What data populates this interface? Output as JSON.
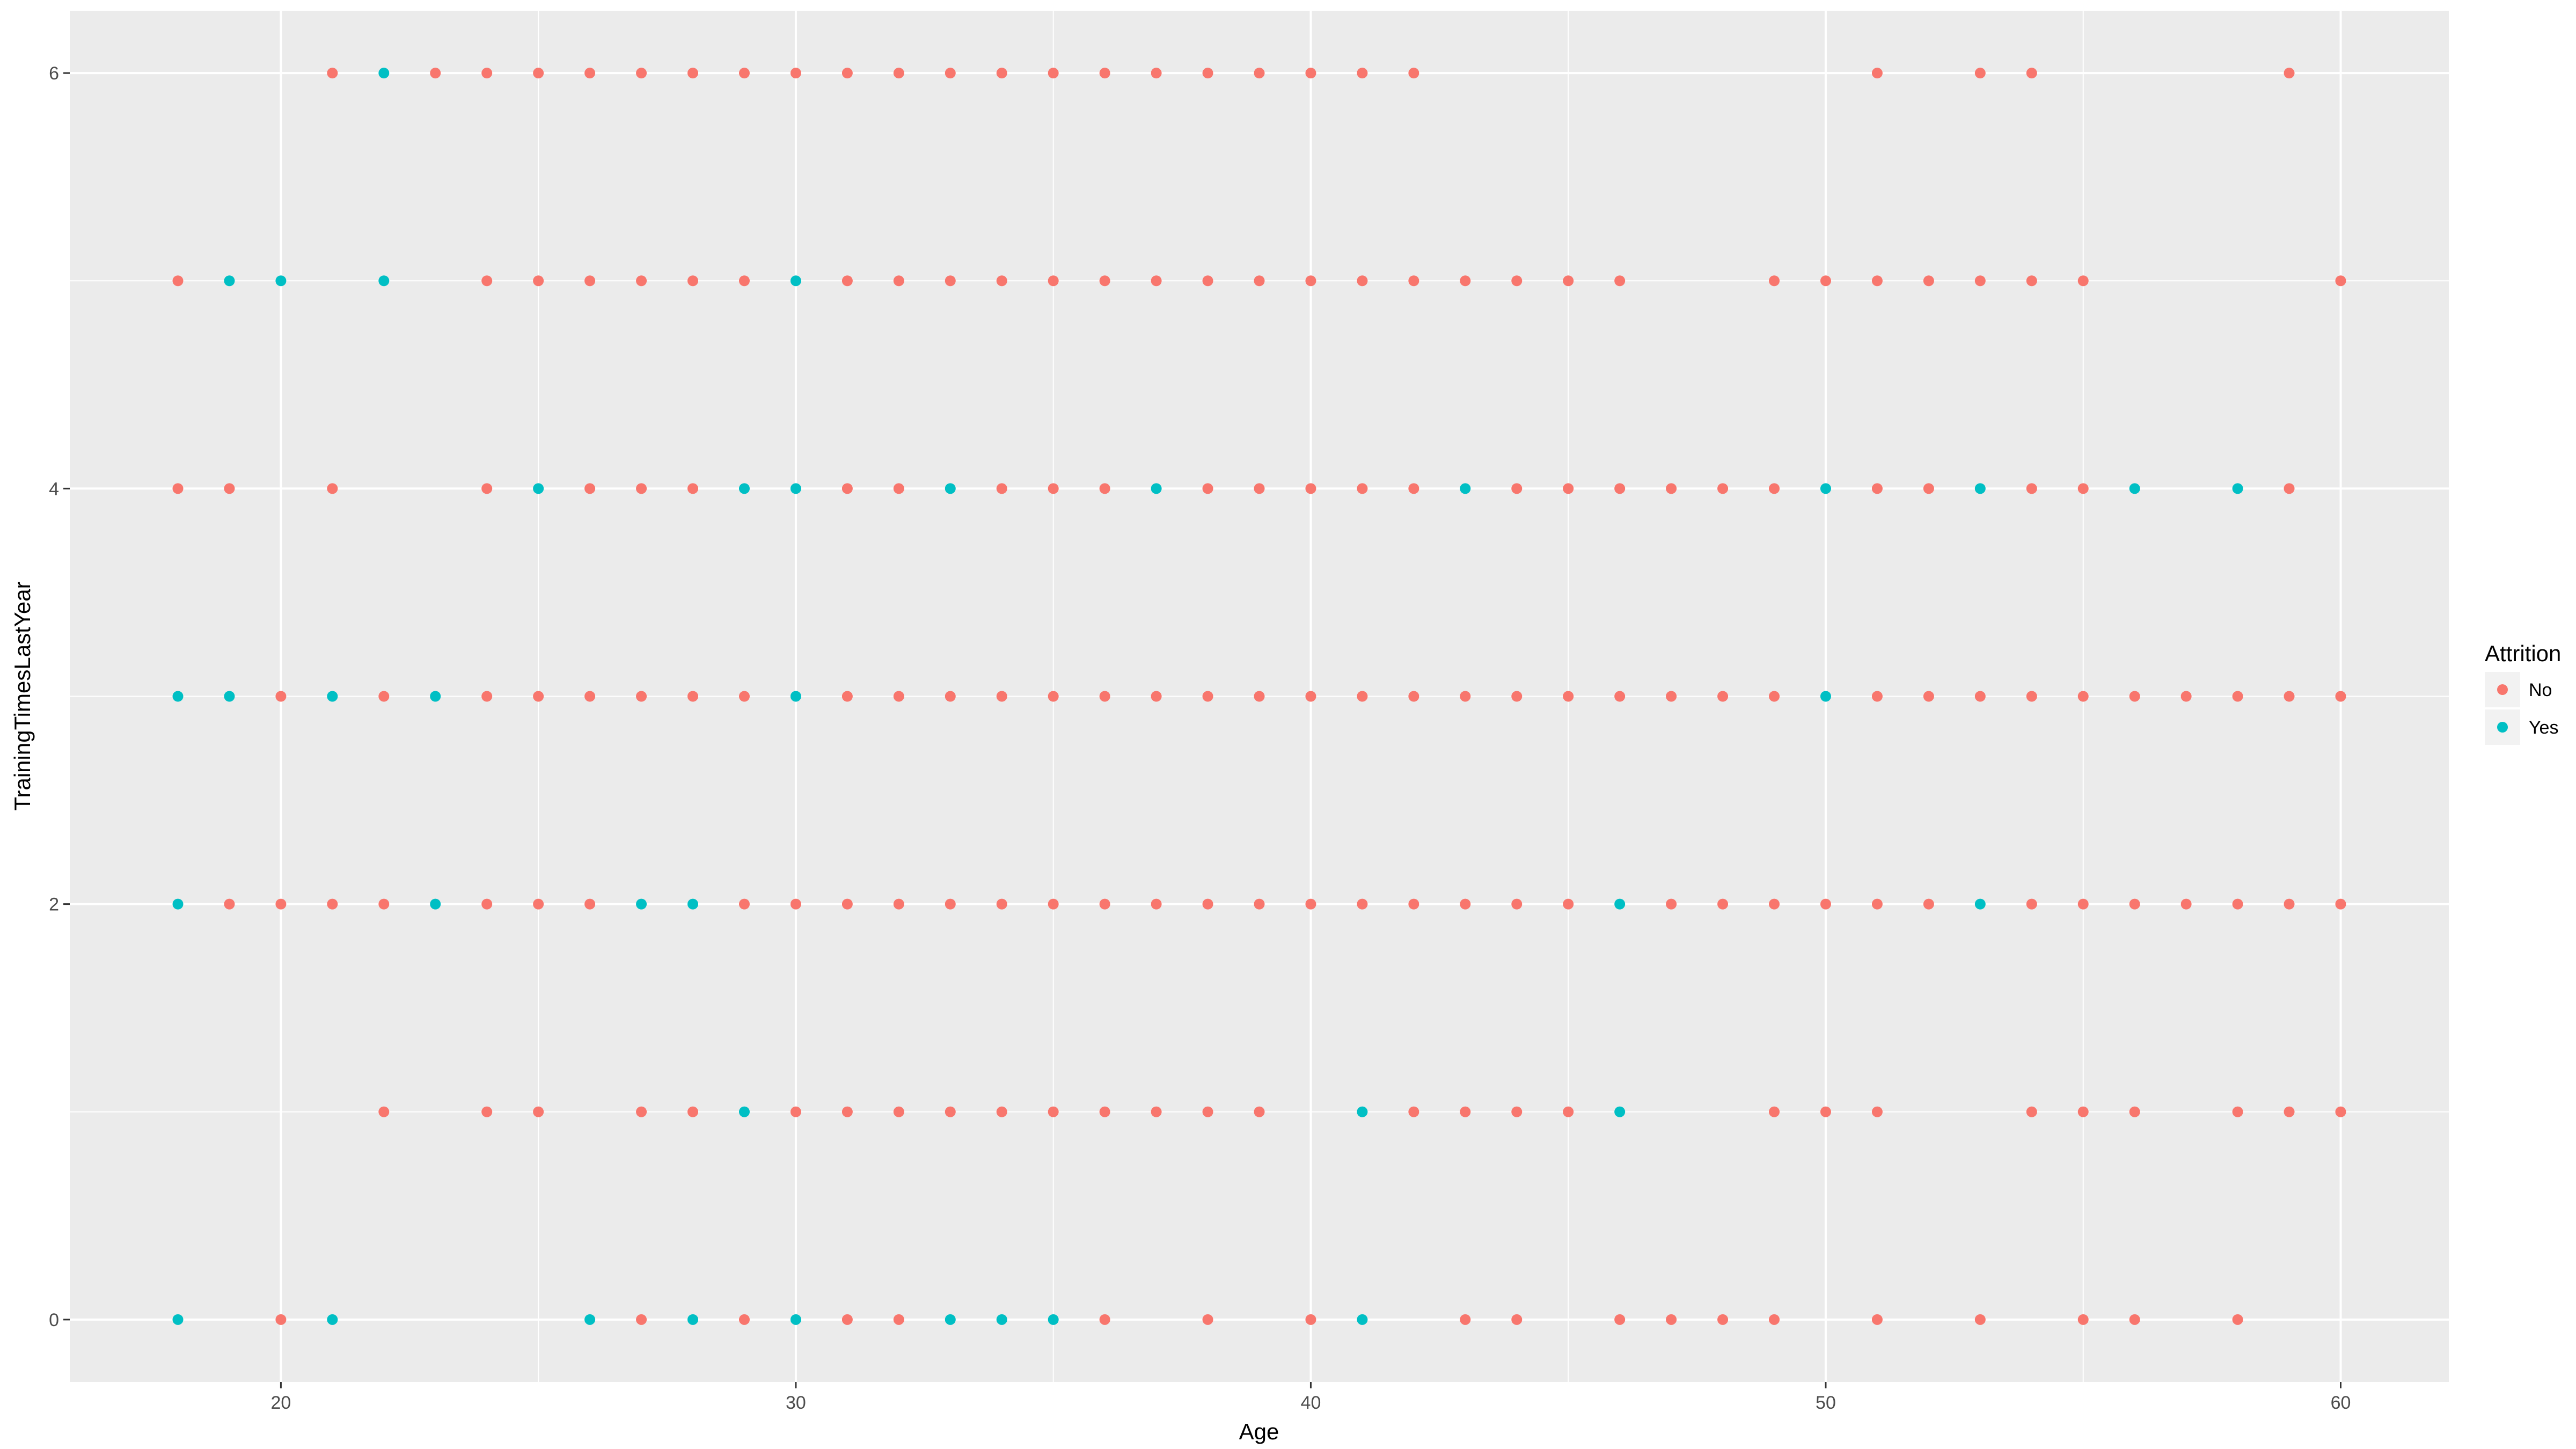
{
  "chart_data": {
    "type": "scatter",
    "title": "",
    "xlabel": "Age",
    "ylabel": "TrainingTimesLastYear",
    "xlim": [
      15.9,
      62.1
    ],
    "ylim": [
      -0.3,
      6.3
    ],
    "x_ticks": [
      20,
      30,
      40,
      50,
      60
    ],
    "y_ticks": [
      0,
      2,
      4,
      6
    ],
    "grid": true,
    "background": "#EBEBEB",
    "grid_color": "#FFFFFF",
    "legend": {
      "title": "Attrition",
      "placement": "right",
      "entries": [
        {
          "label": "No",
          "color": "#F8766D"
        },
        {
          "label": "Yes",
          "color": "#00BFC4"
        }
      ]
    },
    "series": [
      {
        "name": "No",
        "color": "#F8766D",
        "points": [
          [
            21,
            6
          ],
          [
            23,
            6
          ],
          [
            24,
            6
          ],
          [
            25,
            6
          ],
          [
            26,
            6
          ],
          [
            27,
            6
          ],
          [
            28,
            6
          ],
          [
            29,
            6
          ],
          [
            30,
            6
          ],
          [
            31,
            6
          ],
          [
            32,
            6
          ],
          [
            33,
            6
          ],
          [
            34,
            6
          ],
          [
            35,
            6
          ],
          [
            36,
            6
          ],
          [
            37,
            6
          ],
          [
            38,
            6
          ],
          [
            39,
            6
          ],
          [
            40,
            6
          ],
          [
            41,
            6
          ],
          [
            42,
            6
          ],
          [
            51,
            6
          ],
          [
            53,
            6
          ],
          [
            54,
            6
          ],
          [
            59,
            6
          ],
          [
            18,
            5
          ],
          [
            24,
            5
          ],
          [
            25,
            5
          ],
          [
            26,
            5
          ],
          [
            27,
            5
          ],
          [
            28,
            5
          ],
          [
            29,
            5
          ],
          [
            31,
            5
          ],
          [
            32,
            5
          ],
          [
            33,
            5
          ],
          [
            34,
            5
          ],
          [
            35,
            5
          ],
          [
            36,
            5
          ],
          [
            37,
            5
          ],
          [
            38,
            5
          ],
          [
            39,
            5
          ],
          [
            40,
            5
          ],
          [
            41,
            5
          ],
          [
            42,
            5
          ],
          [
            43,
            5
          ],
          [
            44,
            5
          ],
          [
            45,
            5
          ],
          [
            46,
            5
          ],
          [
            49,
            5
          ],
          [
            50,
            5
          ],
          [
            51,
            5
          ],
          [
            52,
            5
          ],
          [
            53,
            5
          ],
          [
            54,
            5
          ],
          [
            55,
            5
          ],
          [
            60,
            5
          ],
          [
            18,
            4
          ],
          [
            19,
            4
          ],
          [
            21,
            4
          ],
          [
            24,
            4
          ],
          [
            26,
            4
          ],
          [
            27,
            4
          ],
          [
            28,
            4
          ],
          [
            31,
            4
          ],
          [
            32,
            4
          ],
          [
            34,
            4
          ],
          [
            35,
            4
          ],
          [
            36,
            4
          ],
          [
            38,
            4
          ],
          [
            39,
            4
          ],
          [
            40,
            4
          ],
          [
            41,
            4
          ],
          [
            42,
            4
          ],
          [
            44,
            4
          ],
          [
            45,
            4
          ],
          [
            46,
            4
          ],
          [
            47,
            4
          ],
          [
            48,
            4
          ],
          [
            49,
            4
          ],
          [
            51,
            4
          ],
          [
            52,
            4
          ],
          [
            54,
            4
          ],
          [
            55,
            4
          ],
          [
            59,
            4
          ],
          [
            20,
            3
          ],
          [
            22,
            3
          ],
          [
            24,
            3
          ],
          [
            25,
            3
          ],
          [
            26,
            3
          ],
          [
            27,
            3
          ],
          [
            28,
            3
          ],
          [
            29,
            3
          ],
          [
            31,
            3
          ],
          [
            32,
            3
          ],
          [
            33,
            3
          ],
          [
            34,
            3
          ],
          [
            35,
            3
          ],
          [
            36,
            3
          ],
          [
            37,
            3
          ],
          [
            38,
            3
          ],
          [
            39,
            3
          ],
          [
            40,
            3
          ],
          [
            41,
            3
          ],
          [
            42,
            3
          ],
          [
            43,
            3
          ],
          [
            44,
            3
          ],
          [
            45,
            3
          ],
          [
            46,
            3
          ],
          [
            47,
            3
          ],
          [
            48,
            3
          ],
          [
            49,
            3
          ],
          [
            51,
            3
          ],
          [
            52,
            3
          ],
          [
            53,
            3
          ],
          [
            54,
            3
          ],
          [
            55,
            3
          ],
          [
            56,
            3
          ],
          [
            57,
            3
          ],
          [
            58,
            3
          ],
          [
            59,
            3
          ],
          [
            60,
            3
          ],
          [
            19,
            2
          ],
          [
            20,
            2
          ],
          [
            21,
            2
          ],
          [
            22,
            2
          ],
          [
            24,
            2
          ],
          [
            25,
            2
          ],
          [
            26,
            2
          ],
          [
            29,
            2
          ],
          [
            30,
            2
          ],
          [
            31,
            2
          ],
          [
            32,
            2
          ],
          [
            33,
            2
          ],
          [
            34,
            2
          ],
          [
            35,
            2
          ],
          [
            36,
            2
          ],
          [
            37,
            2
          ],
          [
            38,
            2
          ],
          [
            39,
            2
          ],
          [
            40,
            2
          ],
          [
            41,
            2
          ],
          [
            42,
            2
          ],
          [
            43,
            2
          ],
          [
            44,
            2
          ],
          [
            45,
            2
          ],
          [
            47,
            2
          ],
          [
            48,
            2
          ],
          [
            49,
            2
          ],
          [
            50,
            2
          ],
          [
            51,
            2
          ],
          [
            52,
            2
          ],
          [
            54,
            2
          ],
          [
            55,
            2
          ],
          [
            56,
            2
          ],
          [
            57,
            2
          ],
          [
            58,
            2
          ],
          [
            59,
            2
          ],
          [
            60,
            2
          ],
          [
            22,
            1
          ],
          [
            24,
            1
          ],
          [
            25,
            1
          ],
          [
            27,
            1
          ],
          [
            28,
            1
          ],
          [
            30,
            1
          ],
          [
            31,
            1
          ],
          [
            32,
            1
          ],
          [
            33,
            1
          ],
          [
            34,
            1
          ],
          [
            35,
            1
          ],
          [
            36,
            1
          ],
          [
            37,
            1
          ],
          [
            38,
            1
          ],
          [
            39,
            1
          ],
          [
            42,
            1
          ],
          [
            43,
            1
          ],
          [
            44,
            1
          ],
          [
            45,
            1
          ],
          [
            49,
            1
          ],
          [
            50,
            1
          ],
          [
            51,
            1
          ],
          [
            54,
            1
          ],
          [
            55,
            1
          ],
          [
            56,
            1
          ],
          [
            58,
            1
          ],
          [
            59,
            1
          ],
          [
            60,
            1
          ],
          [
            20,
            0
          ],
          [
            27,
            0
          ],
          [
            29,
            0
          ],
          [
            31,
            0
          ],
          [
            32,
            0
          ],
          [
            36,
            0
          ],
          [
            38,
            0
          ],
          [
            40,
            0
          ],
          [
            43,
            0
          ],
          [
            44,
            0
          ],
          [
            46,
            0
          ],
          [
            47,
            0
          ],
          [
            48,
            0
          ],
          [
            49,
            0
          ],
          [
            51,
            0
          ],
          [
            53,
            0
          ],
          [
            55,
            0
          ],
          [
            56,
            0
          ],
          [
            58,
            0
          ]
        ]
      },
      {
        "name": "Yes",
        "color": "#00BFC4",
        "points": [
          [
            22,
            6
          ],
          [
            19,
            5
          ],
          [
            20,
            5
          ],
          [
            22,
            5
          ],
          [
            30,
            5
          ],
          [
            25,
            4
          ],
          [
            29,
            4
          ],
          [
            30,
            4
          ],
          [
            33,
            4
          ],
          [
            37,
            4
          ],
          [
            43,
            4
          ],
          [
            50,
            4
          ],
          [
            53,
            4
          ],
          [
            56,
            4
          ],
          [
            58,
            4
          ],
          [
            18,
            3
          ],
          [
            19,
            3
          ],
          [
            21,
            3
          ],
          [
            23,
            3
          ],
          [
            30,
            3
          ],
          [
            50,
            3
          ],
          [
            18,
            2
          ],
          [
            23,
            2
          ],
          [
            27,
            2
          ],
          [
            28,
            2
          ],
          [
            46,
            2
          ],
          [
            53,
            2
          ],
          [
            29,
            1
          ],
          [
            41,
            1
          ],
          [
            46,
            1
          ],
          [
            18,
            0
          ],
          [
            21,
            0
          ],
          [
            26,
            0
          ],
          [
            28,
            0
          ],
          [
            30,
            0
          ],
          [
            33,
            0
          ],
          [
            34,
            0
          ],
          [
            35,
            0
          ],
          [
            41,
            0
          ]
        ]
      }
    ]
  }
}
